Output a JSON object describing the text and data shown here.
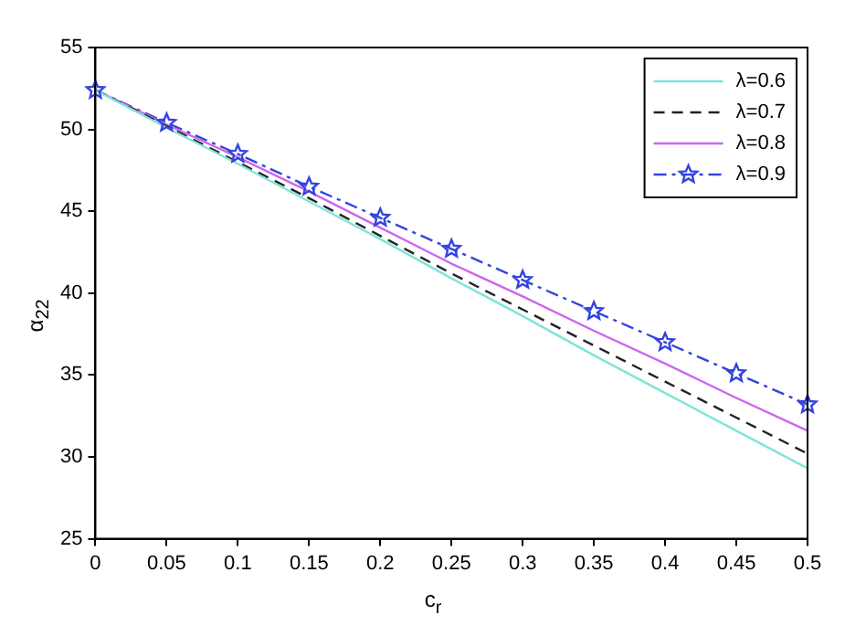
{
  "chart_data": {
    "type": "line",
    "xlabel": "c$_{r}$",
    "ylabel": "α$_{22}$",
    "x": [
      0,
      0.05,
      0.1,
      0.15,
      0.2,
      0.25,
      0.3,
      0.35,
      0.4,
      0.45,
      0.5
    ],
    "series": [
      {
        "name": "λ=0.6",
        "color": "#7fe3d8",
        "line_style": "solid",
        "marker": "none",
        "values": [
          52.4,
          50.1,
          47.9,
          45.6,
          43.3,
          40.9,
          38.6,
          36.2,
          33.9,
          31.6,
          29.3
        ]
      },
      {
        "name": "λ=0.7",
        "color": "#222222",
        "line_style": "dashed",
        "marker": "none",
        "values": [
          52.4,
          50.2,
          48.0,
          45.8,
          43.5,
          41.2,
          39.0,
          36.8,
          34.6,
          32.4,
          30.2
        ]
      },
      {
        "name": "λ=0.8",
        "color": "#cc66ee",
        "line_style": "solid",
        "marker": "none",
        "values": [
          52.4,
          50.3,
          48.3,
          46.2,
          44.0,
          41.8,
          39.8,
          37.7,
          35.7,
          33.6,
          31.6
        ]
      },
      {
        "name": "λ=0.9",
        "color": "#3344dd",
        "line_style": "dashdot",
        "marker": "star",
        "values": [
          52.4,
          50.4,
          48.5,
          46.5,
          44.6,
          42.7,
          40.8,
          38.9,
          37.0,
          35.1,
          33.2
        ]
      }
    ],
    "xlim": [
      0,
      0.5
    ],
    "xticks": [
      0,
      0.05,
      0.1,
      0.15,
      0.2,
      0.25,
      0.3,
      0.35,
      0.4,
      0.45,
      0.5
    ],
    "ylim": [
      25,
      55
    ],
    "yticks": [
      25,
      30,
      35,
      40,
      45,
      50,
      55
    ],
    "grid": false,
    "legend": "top right"
  }
}
